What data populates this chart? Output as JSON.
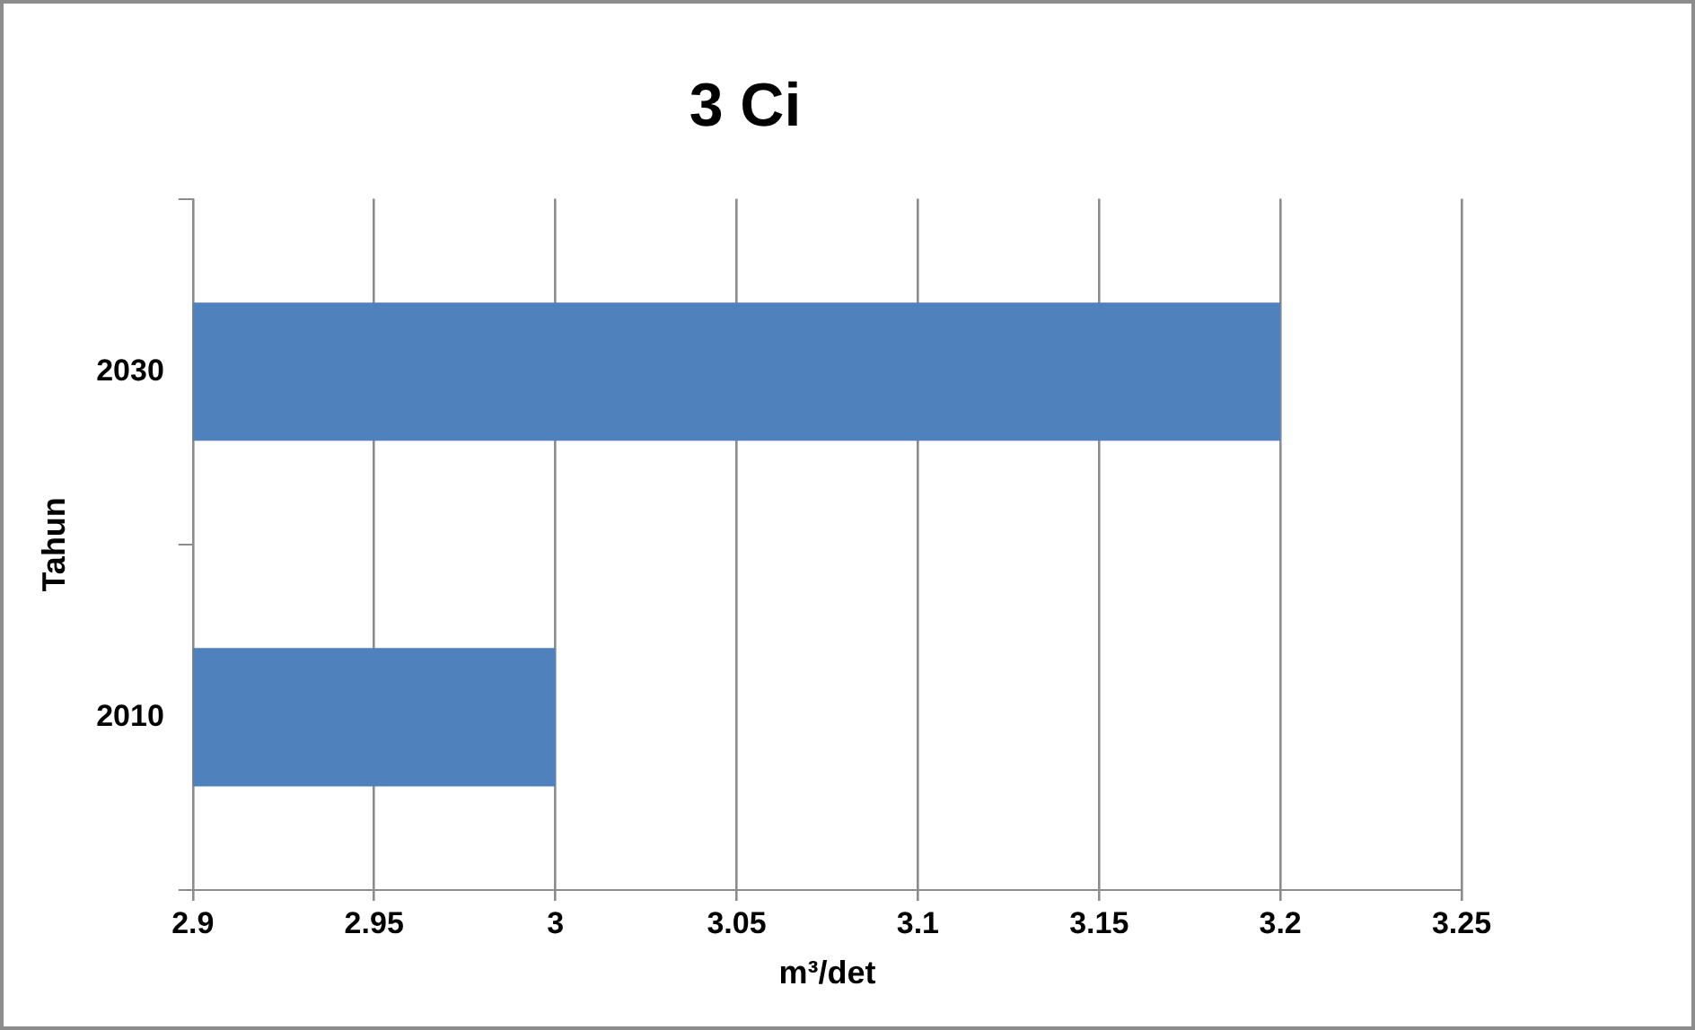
{
  "chart_data": {
    "type": "bar",
    "orientation": "horizontal",
    "title": "3 Ci",
    "xlabel": "m³/det",
    "ylabel": "Tahun",
    "categories": [
      "2030",
      "2010"
    ],
    "series": [
      {
        "color": "#4f81bd",
        "values": [
          3.2,
          3.0
        ]
      }
    ],
    "xlim": [
      2.9,
      3.25
    ],
    "xticks": [
      2.9,
      2.95,
      3,
      3.05,
      3.1,
      3.15,
      3.2,
      3.25
    ],
    "grid": "x",
    "legend": false
  }
}
